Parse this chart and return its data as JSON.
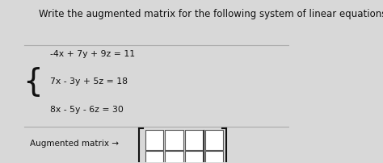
{
  "title": "Write the augmented matrix for the following system of linear equations.",
  "equations": [
    "-4x + 7y + 9z = 11",
    "7x - 3y + 5z = 18",
    "8x - 5y - 6z = 30"
  ],
  "augmented_label": "Augmented matrix →",
  "bg_color": "#d8d8d8",
  "text_color": "#111111",
  "box_color": "#ffffff",
  "box_edge_color": "#555555",
  "title_fontsize": 8.5,
  "eq_fontsize": 7.8,
  "label_fontsize": 7.5,
  "matrix_rows": 3,
  "matrix_cols": 4,
  "divider_after_col": 3
}
